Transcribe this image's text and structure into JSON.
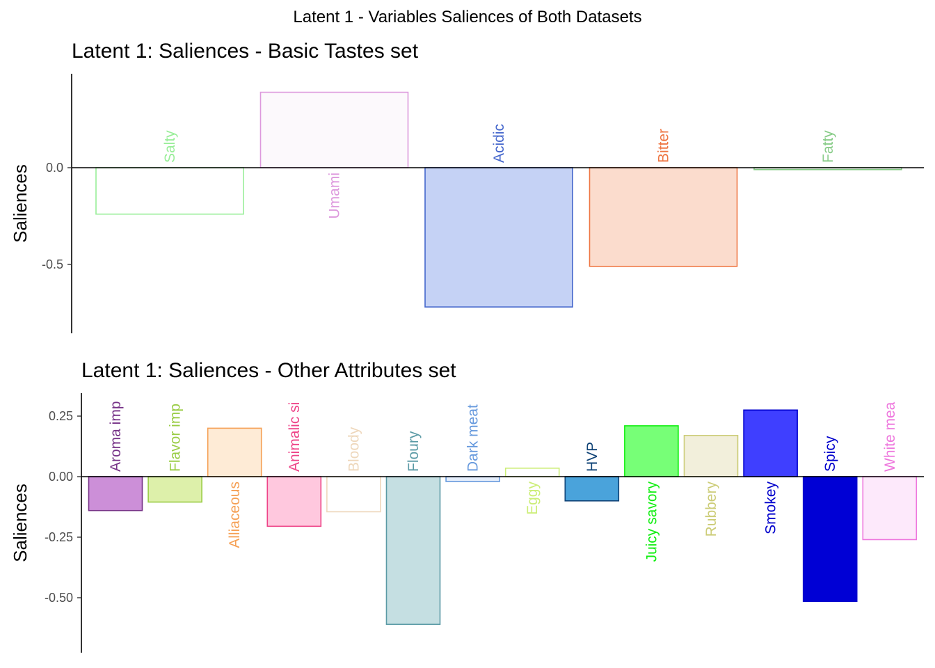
{
  "figure_title": "Latent 1 - Variables Saliences of Both Datasets",
  "chart_data": [
    {
      "type": "bar",
      "title": "Latent 1: Saliences - Basic Tastes set",
      "xlabel": "",
      "ylabel": "Saliences",
      "ylim": [
        -0.86,
        0.47
      ],
      "yticks": [
        0.0,
        -0.5
      ],
      "ytick_labels": [
        "0.0",
        "-0.5"
      ],
      "grid": false,
      "legend": "none",
      "categories": [
        "Salty",
        "Umami",
        "Acidic",
        "Bitter",
        "Fatty"
      ],
      "values": [
        -0.24,
        0.39,
        -0.72,
        -0.51,
        -0.01
      ],
      "colors": [
        "#99ee99",
        "#dd99dd",
        "#4466cc",
        "#ee7744",
        "#88cc88"
      ],
      "fills": [
        "#ffffff",
        "#fcf9fc",
        "#c5d2f5",
        "#fbdccd",
        "#eaf5ea"
      ]
    },
    {
      "type": "bar",
      "title": "Latent 1: Saliences - Other Attributes set",
      "xlabel": "",
      "ylabel": "Saliences",
      "ylim": [
        -0.72,
        0.35
      ],
      "yticks": [
        0.25,
        0.0,
        -0.25,
        -0.5
      ],
      "ytick_labels": [
        "0.25",
        "0.00",
        "-0.25",
        "-0.50"
      ],
      "grid": false,
      "legend": "none",
      "categories": [
        "Aroma imp",
        "Flavor imp",
        "Alliaceous",
        "Animalic si",
        "Bloody",
        "Floury",
        "Dark meat",
        "Eggy",
        "HVP",
        "Juicy savory",
        "Rubbery",
        "Smokey",
        "Spicy",
        "White mea"
      ],
      "values": [
        -0.14,
        -0.105,
        0.2,
        -0.205,
        -0.145,
        -0.61,
        -0.02,
        0.035,
        -0.1,
        0.21,
        0.17,
        0.275,
        -0.515,
        -0.26
      ],
      "colors": [
        "#773388",
        "#99cc44",
        "#f5a055",
        "#ee4488",
        "#eed7bb",
        "#5a9aa5",
        "#6699dd",
        "#ccee77",
        "#114477",
        "#11ee11",
        "#cccc77",
        "#0000cc",
        "#0000cc",
        "#ee77dd"
      ],
      "fills": [
        "#cc8fd8",
        "#ddf0aa",
        "#feebd6",
        "#ffc8de",
        "#ffffff",
        "#c5dfe2",
        "#e5eefb",
        "#ffffff",
        "#4aa3db",
        "#77ff77",
        "#f2efdb",
        "#3f3fff",
        "#0000d5",
        "#fde9fb"
      ]
    }
  ]
}
